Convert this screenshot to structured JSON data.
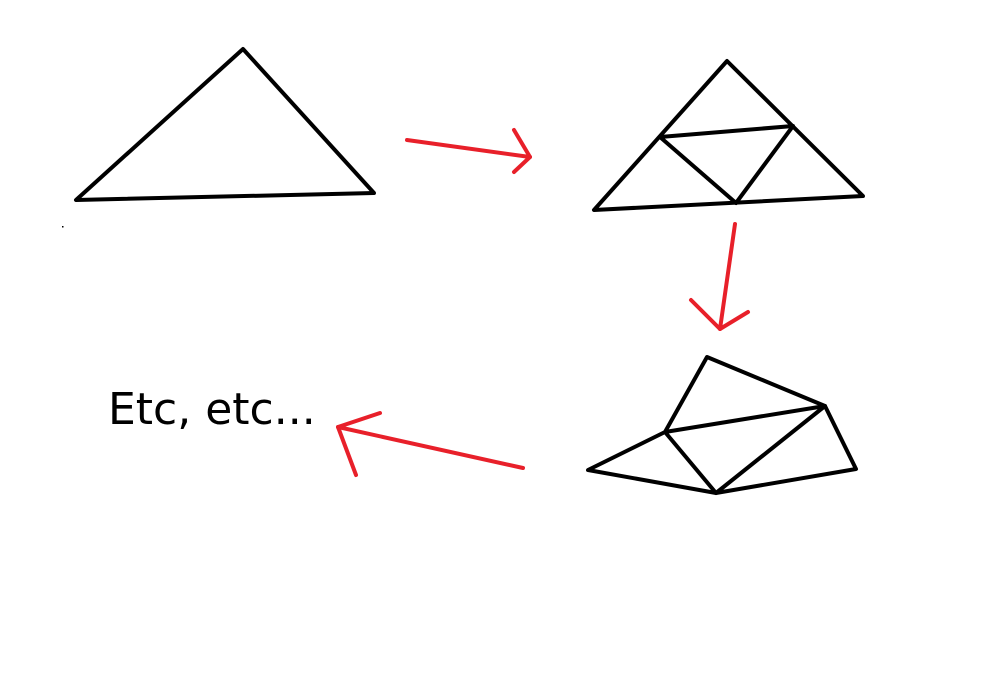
{
  "caption": "Etc, etc...",
  "colors": {
    "stroke": "#000000",
    "arrow": "#e8202a",
    "background": "#ffffff"
  }
}
